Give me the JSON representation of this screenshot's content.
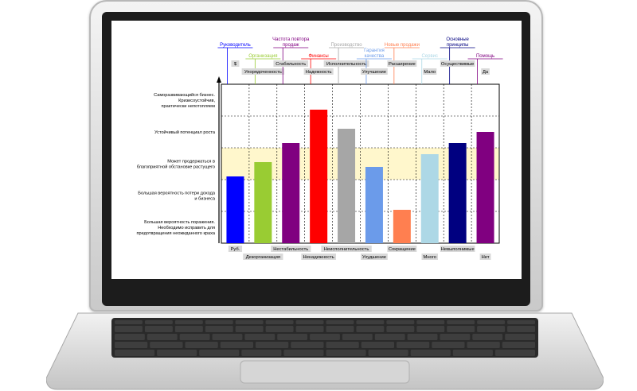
{
  "chart_data": {
    "type": "bar",
    "ylim": [
      0,
      5
    ],
    "y_levels": [
      {
        "value": 0.5,
        "label": [
          "Большая вероятность поражения.",
          "Необходимо исправить для",
          "предотвращения неожиданного краха"
        ]
      },
      {
        "value": 1.5,
        "label": [
          "Большая вероятность потери дохода",
          "и бизнеса"
        ]
      },
      {
        "value": 2.5,
        "label": [
          "Может продержаться в",
          "благоприятной обстановке растущего"
        ]
      },
      {
        "value": 3.5,
        "label": [
          "Устойчивый потенциал роста"
        ]
      },
      {
        "value": 4.5,
        "label": [
          "Саморазвивающийся бизнес.",
          "Кризисоустойчив,",
          "практически непотопляем"
        ]
      }
    ],
    "band": {
      "from": 2,
      "to": 3,
      "color": "#fff7cc"
    },
    "bars": [
      {
        "value": 2.1,
        "color": "#0000ff",
        "category": "Руководитель",
        "top_label": "$",
        "bottom_label": "Руб."
      },
      {
        "value": 2.55,
        "color": "#99cc33",
        "category": "Организация",
        "top_label": "Упорядоченность",
        "bottom_label": "Дезорганизация"
      },
      {
        "value": 3.15,
        "color": "#800080",
        "category": "Частота повтора продаж",
        "top_label": "Стабильность",
        "bottom_label": "Нестабильность"
      },
      {
        "value": 4.2,
        "color": "#ff0000",
        "category": "Финансы",
        "top_label": "Надежность",
        "bottom_label": "Ненадежность"
      },
      {
        "value": 3.6,
        "color": "#a6a6a6",
        "category": "Производство",
        "top_label": "Исполнительность",
        "bottom_label": "Неисполнительность"
      },
      {
        "value": 2.4,
        "color": "#6b9bea",
        "category": "Гарантия качества",
        "top_label": "Улучшение",
        "bottom_label": "Ухудшение"
      },
      {
        "value": 1.05,
        "color": "#ff7f50",
        "category": "Новые продажи",
        "top_label": "Расширение",
        "bottom_label": "Сокращение"
      },
      {
        "value": 2.8,
        "color": "#add8e6",
        "category": "Сервис",
        "top_label": "Мало",
        "bottom_label": "Много"
      },
      {
        "value": 3.15,
        "color": "#000080",
        "category": "Основные принципы",
        "top_label": "Осуществимые",
        "bottom_label": "Невыполнимые"
      },
      {
        "value": 3.5,
        "color": "#800080",
        "category": "Помощь",
        "top_label": "Да",
        "bottom_label": "Нет"
      }
    ]
  }
}
